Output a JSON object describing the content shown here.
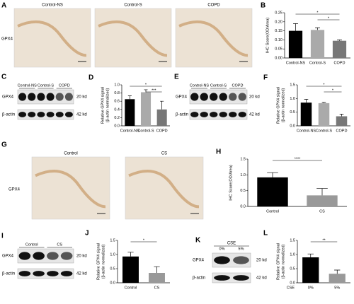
{
  "panels": {
    "A": {
      "label": "A",
      "row_label": "GPX4",
      "columns": [
        "Control-NS",
        "Control-S",
        "COPD"
      ]
    },
    "C": {
      "label": "C",
      "lanes": [
        "Control-NS",
        "Control-S",
        "COPD"
      ],
      "bands": [
        "GPX4",
        "β-actin"
      ],
      "sizes": [
        "20 kd",
        "42 kd"
      ]
    },
    "E": {
      "label": "E",
      "lanes": [
        "Control-NS",
        "Control-S",
        "COPD"
      ],
      "bands": [
        "GPX4",
        "β-actin"
      ],
      "sizes": [
        "20 kd",
        "42 kd"
      ]
    },
    "G": {
      "label": "G",
      "row_label": "GPX4",
      "columns": [
        "Control",
        "CS"
      ]
    },
    "I": {
      "label": "I",
      "lanes": [
        "Control",
        "CS"
      ],
      "bands": [
        "GPX4",
        "β-actin"
      ],
      "sizes": [
        "20 kd",
        "42 kd"
      ]
    },
    "K": {
      "label": "K",
      "group": "CSE",
      "lanes": [
        "0%",
        "5%"
      ],
      "bands": [
        "GPX4",
        "β-actin"
      ],
      "sizes": [
        "20 kd",
        "42 kd"
      ]
    }
  },
  "chart_data": [
    {
      "type": "bar",
      "label": "B",
      "ylabel": [
        "IHC Score(OD/Area)"
      ],
      "categories": [
        "Control-NS",
        "Control-S",
        "COPD"
      ],
      "values": [
        0.15,
        0.155,
        0.095
      ],
      "errors": [
        0.04,
        0.012,
        0.005
      ],
      "colors": [
        "#000000",
        "#aaaaaa",
        "#777777"
      ],
      "ylim": [
        0,
        0.25
      ],
      "yticks": [
        {
          "value": 0,
          "label": "0.00"
        },
        0.05,
        {
          "value": 0.1,
          "label": "0.10"
        },
        0.15,
        {
          "value": 0.2,
          "label": "0.20"
        },
        0.25
      ],
      "annotations": [
        {
          "text": "*",
          "between": [
            "Control-S",
            "COPD"
          ]
        },
        {
          "text": "*",
          "between": [
            "Control-NS",
            "COPD"
          ]
        }
      ]
    },
    {
      "type": "bar",
      "label": "D",
      "ylabel": [
        "Relative GPX4 signal",
        "(β-actin normalized)"
      ],
      "categories": [
        "Control-NS",
        "Control-S",
        "COPD"
      ],
      "values": [
        0.65,
        0.82,
        0.4
      ],
      "errors": [
        0.08,
        0.06,
        0.2
      ],
      "colors": [
        "#000000",
        "#aaaaaa",
        "#777777"
      ],
      "ylim": [
        0,
        1
      ],
      "yticks": [
        {
          "value": 0,
          "label": "0.0"
        },
        0.2,
        0.4,
        0.6,
        0.8,
        {
          "value": 1,
          "label": "1.0"
        }
      ],
      "annotations": [
        {
          "text": "***",
          "between": [
            "Control-S",
            "COPD"
          ]
        },
        {
          "text": "*",
          "between": [
            "Control-NS",
            "COPD"
          ]
        }
      ]
    },
    {
      "type": "bar",
      "label": "F",
      "ylabel": [
        "Relative GPX4 signal",
        "(β-actin normalized)"
      ],
      "categories": [
        "Control-NS",
        "Control-S",
        "COPD"
      ],
      "values": [
        0.85,
        0.83,
        0.35
      ],
      "errors": [
        0.12,
        0.03,
        0.08
      ],
      "colors": [
        "#000000",
        "#aaaaaa",
        "#777777"
      ],
      "ylim": [
        0,
        1.5
      ],
      "yticks": [
        {
          "value": 0,
          "label": "0.0"
        },
        0.5,
        {
          "value": 1,
          "label": "1.0"
        },
        1.5
      ],
      "annotations": [
        {
          "text": "*",
          "between": [
            "Control-S",
            "COPD"
          ]
        },
        {
          "text": "*",
          "between": [
            "Control-NS",
            "COPD"
          ]
        }
      ]
    },
    {
      "type": "bar",
      "label": "H",
      "ylabel": [
        "IHC Score(OD/Area)"
      ],
      "categories": [
        "Control",
        "CS"
      ],
      "values": [
        0.92,
        0.35
      ],
      "errors": [
        0.15,
        0.22
      ],
      "colors": [
        "#000000",
        "#999999"
      ],
      "ylim": [
        0,
        1.5
      ],
      "yticks": [
        {
          "value": 0,
          "label": "0.0"
        },
        0.5,
        {
          "value": 1,
          "label": "1.0"
        },
        1.5
      ],
      "annotations": [
        {
          "text": "****",
          "between": [
            "Control",
            "CS"
          ]
        }
      ]
    },
    {
      "type": "bar",
      "label": "J",
      "ylabel": [
        "Relative GPX4 signal",
        "(β-actin normalized)"
      ],
      "categories": [
        "Control",
        "CS"
      ],
      "values": [
        0.93,
        0.35
      ],
      "errors": [
        0.15,
        0.22
      ],
      "colors": [
        "#000000",
        "#999999"
      ],
      "ylim": [
        0,
        1.5
      ],
      "yticks": [
        {
          "value": 0,
          "label": "0.0"
        },
        0.5,
        {
          "value": 1,
          "label": "1.0"
        },
        1.5
      ],
      "annotations": [
        {
          "text": "*",
          "between": [
            "Control",
            "CS"
          ]
        }
      ]
    },
    {
      "type": "bar",
      "label": "L",
      "ylabel": [
        "Relative GPX4 signal",
        "(β-actin normalized)"
      ],
      "xlabel": "CSE",
      "categories": [
        "0%",
        "5%"
      ],
      "values": [
        0.9,
        0.32
      ],
      "errors": [
        0.12,
        0.13
      ],
      "colors": [
        "#000000",
        "#999999"
      ],
      "ylim": [
        0,
        1.5
      ],
      "yticks": [
        {
          "value": 0,
          "label": "0.0"
        },
        0.5,
        {
          "value": 1,
          "label": "1.0"
        },
        1.5
      ],
      "annotations": [
        {
          "text": "**",
          "between": [
            "0%",
            "5%"
          ]
        }
      ]
    }
  ]
}
